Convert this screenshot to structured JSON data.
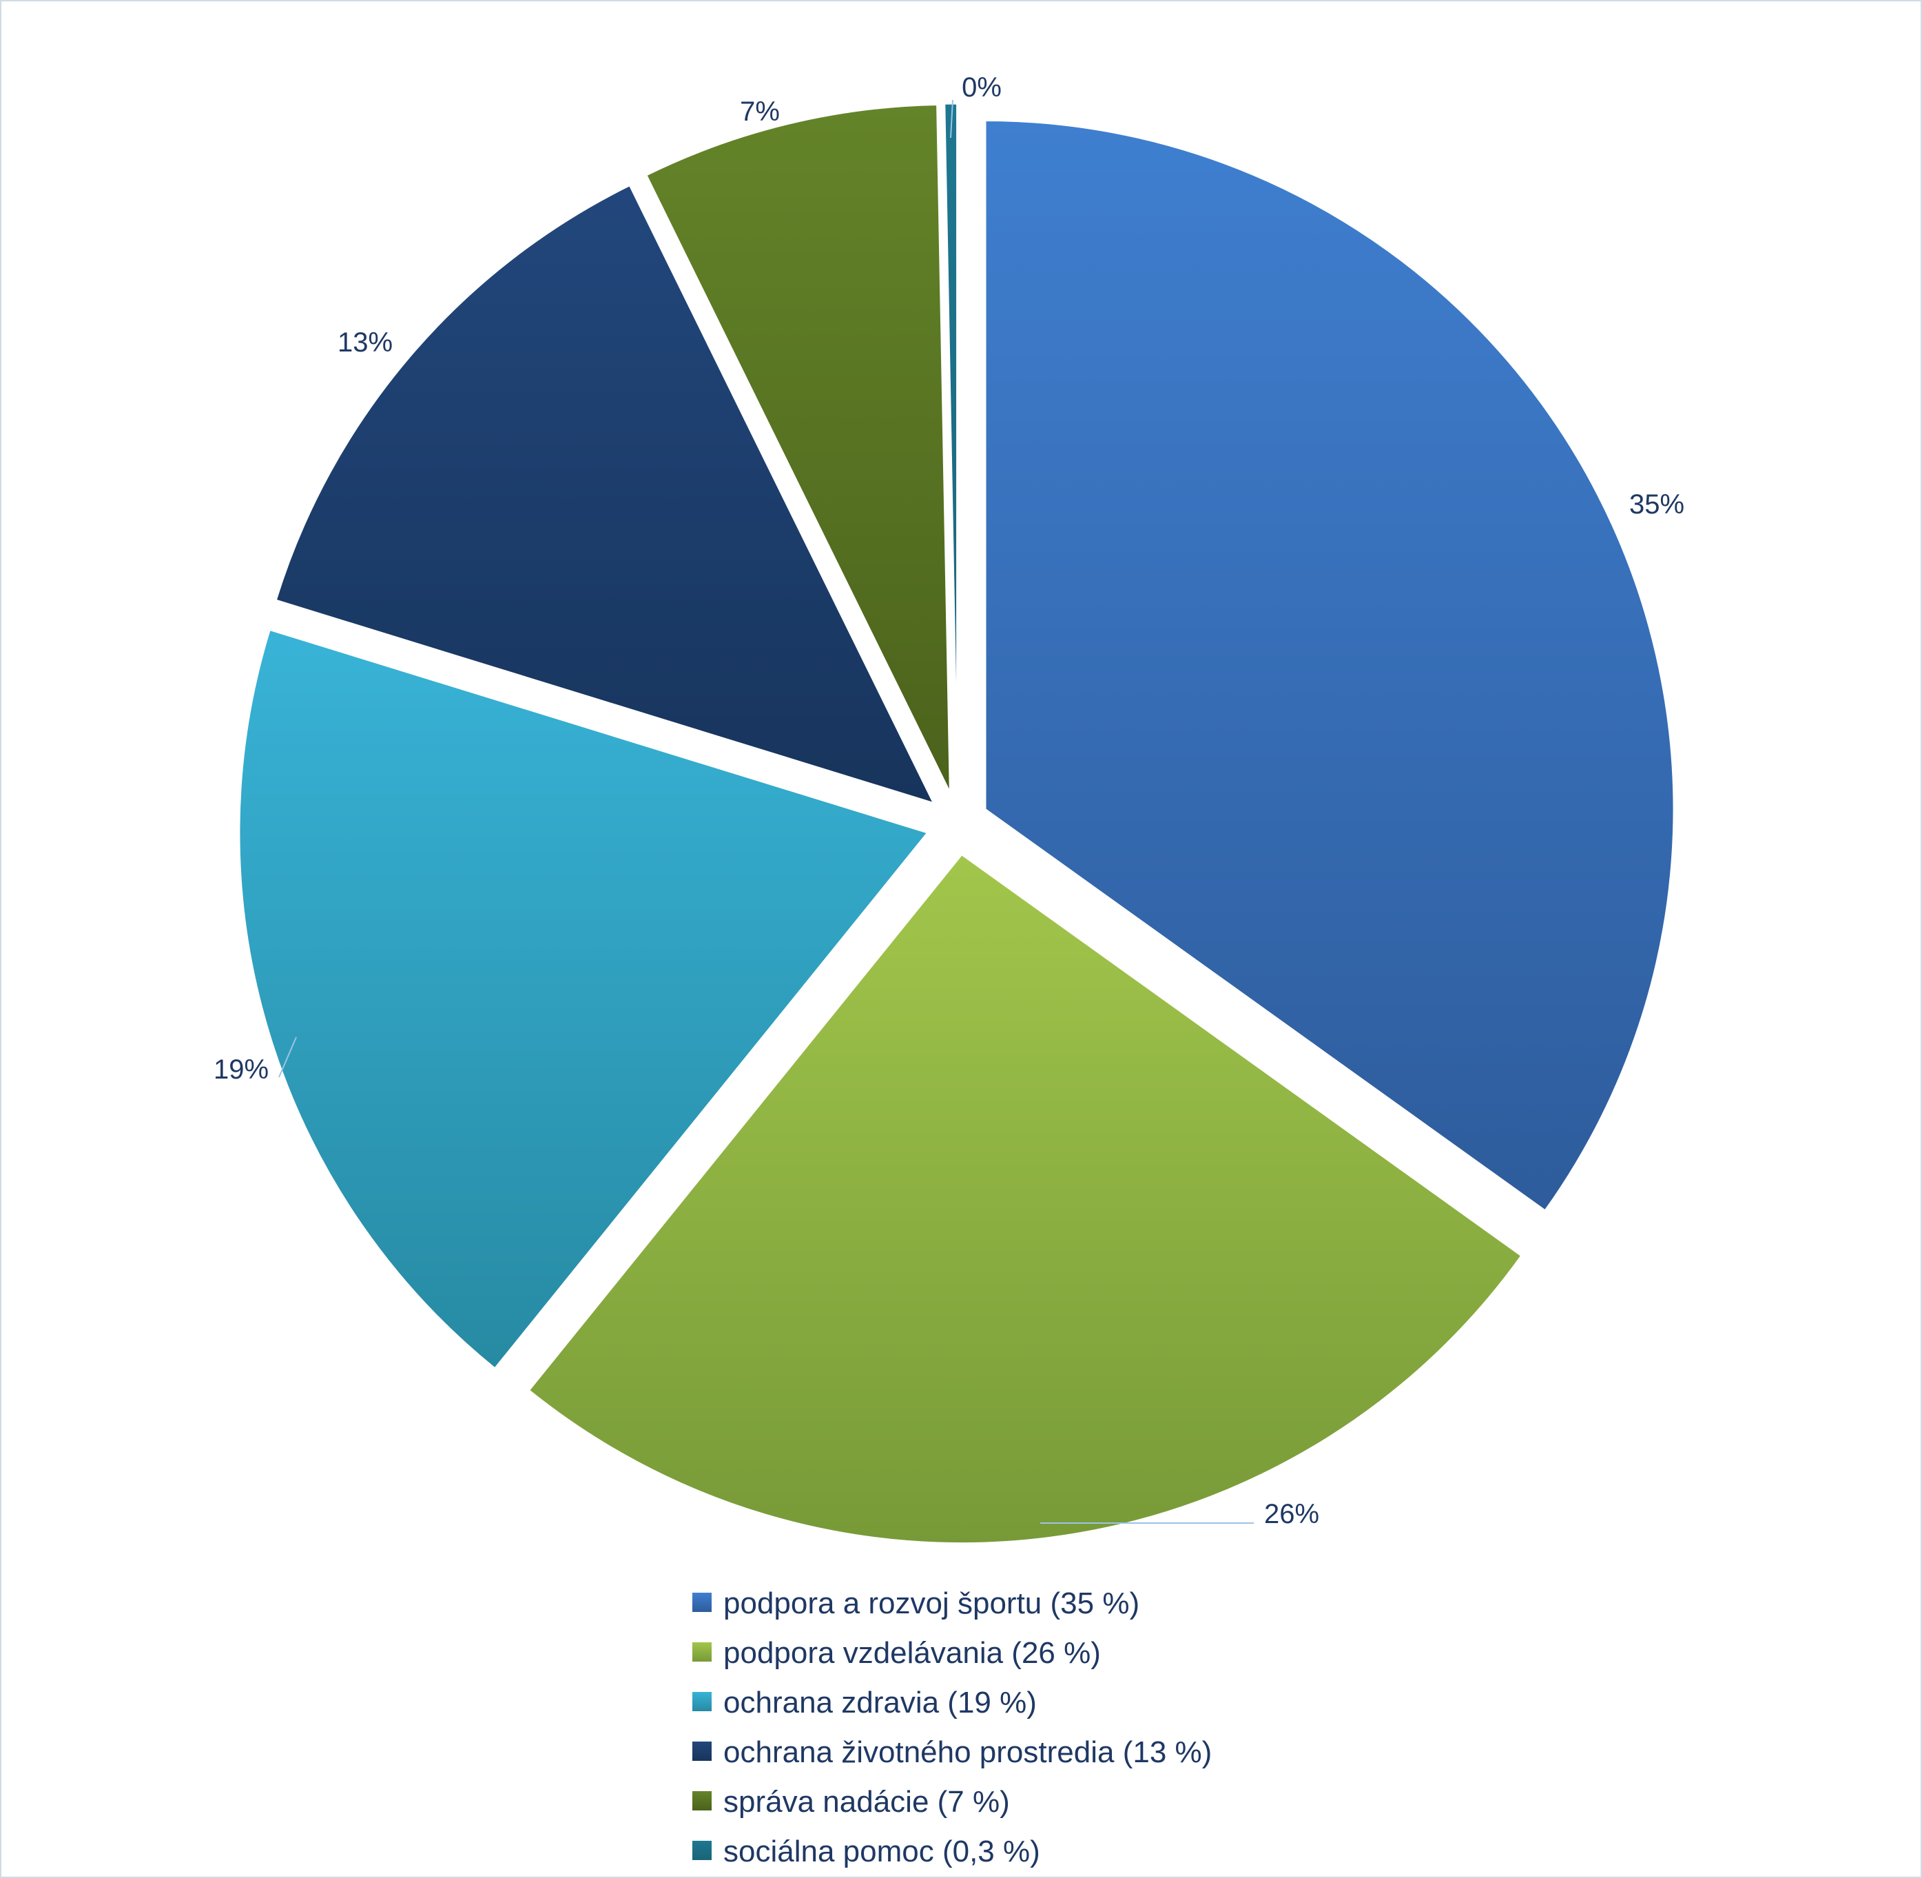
{
  "chart_data": {
    "type": "pie",
    "title": "",
    "slices": [
      {
        "label": "podpora a rozvoj športu (35 %)",
        "value": 35,
        "data_label": "35%",
        "color_light": "#3f7fd0",
        "color_dark": "#2e5c9c"
      },
      {
        "label": "podpora vzdelávania (26 %)",
        "value": 26,
        "data_label": "26%",
        "color_light": "#a2c64b",
        "color_dark": "#779a38"
      },
      {
        "label": "ochrana zdravia (19 %)",
        "value": 19,
        "data_label": "19%",
        "color_light": "#38b3d7",
        "color_dark": "#278aa3"
      },
      {
        "label": "ochrana životného prostredia (13 %)",
        "value": 13,
        "data_label": "13%",
        "color_light": "#22477c",
        "color_dark": "#17345c"
      },
      {
        "label": "správa nadácie (7 %)",
        "value": 7,
        "data_label": "7%",
        "color_light": "#648429",
        "color_dark": "#4b621b"
      },
      {
        "label": "sociálna pomoc (0,3 %)",
        "value": 0.3,
        "data_label": "0%",
        "color_light": "#1e7790",
        "color_dark": "#1a6478"
      }
    ],
    "legend_position": "bottom",
    "label_color": "#1f3864",
    "leader_line_color": "#9dc3e6"
  }
}
